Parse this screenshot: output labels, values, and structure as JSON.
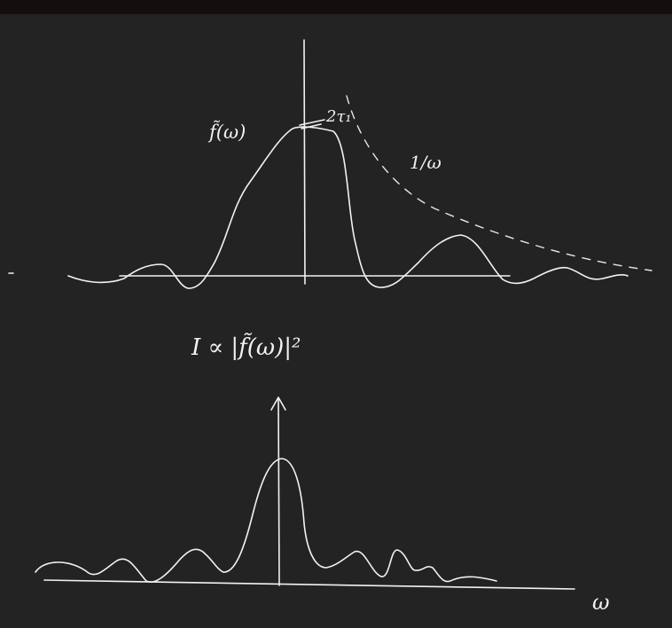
{
  "labels": {
    "top_curve": "f̃(ω)",
    "peak": "2τ₁",
    "envelope": "1/ω",
    "intensity": "I ∝ |f̃(ω)|²",
    "axis_w": "ω"
  },
  "colors": {
    "background": "#232323",
    "topbar": "#140e0e",
    "ink": "#f2f2f2"
  }
}
